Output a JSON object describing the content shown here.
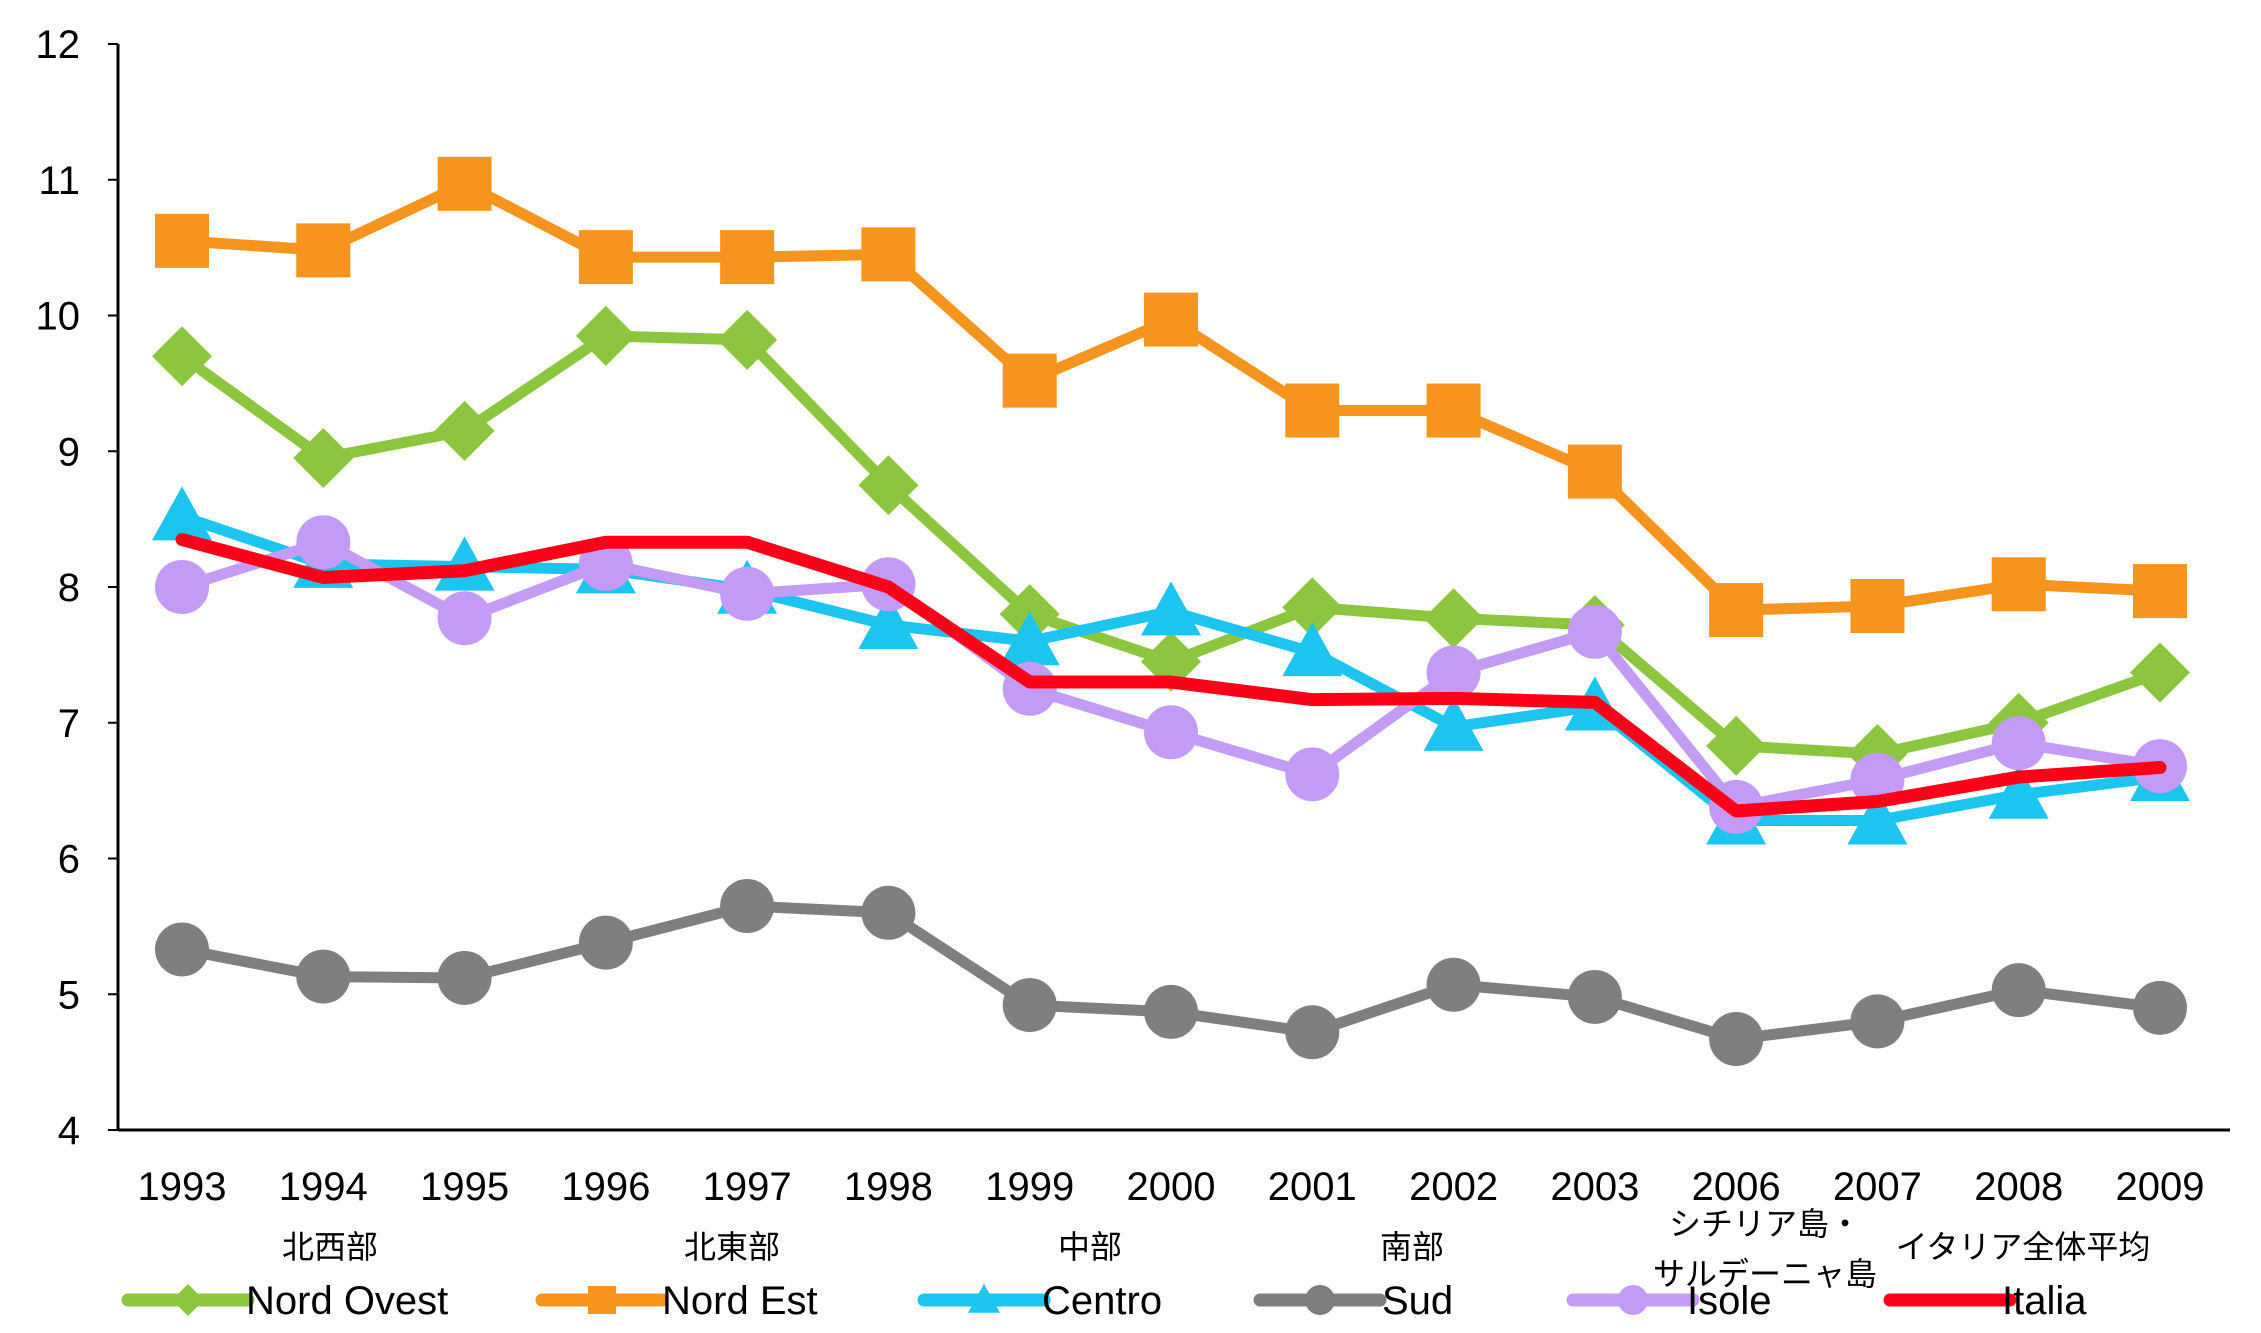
{
  "chart_data": {
    "type": "line",
    "title": "",
    "xlabel": "",
    "ylabel": "",
    "categories": [
      "1993",
      "1994",
      "1995",
      "1996",
      "1997",
      "1998",
      "1999",
      "2000",
      "2001",
      "2002",
      "2003",
      "2006",
      "2007",
      "2008",
      "2009"
    ],
    "ylim": [
      4,
      12
    ],
    "yticks": [
      "4",
      "5",
      "6",
      "7",
      "8",
      "9",
      "10",
      "11",
      "12"
    ],
    "grid": false,
    "legend_position": "bottom",
    "series": [
      {
        "key": "nordovest",
        "name": "Nord Ovest",
        "jp_label": "北西部",
        "color": "#8CC63F",
        "marker": "diamond",
        "values": [
          9.7,
          8.95,
          9.15,
          9.85,
          9.82,
          8.75,
          7.8,
          7.45,
          7.85,
          7.77,
          7.72,
          6.83,
          6.77,
          7.0,
          7.37
        ]
      },
      {
        "key": "nordest",
        "name": "Nord Est",
        "jp_label": "北東部",
        "color": "#F7941D",
        "marker": "square",
        "values": [
          10.55,
          10.48,
          10.97,
          10.43,
          10.43,
          10.45,
          9.52,
          9.97,
          9.3,
          9.3,
          8.85,
          7.83,
          7.86,
          8.02,
          7.97
        ]
      },
      {
        "key": "centro",
        "name": "Centro",
        "jp_label": "中部",
        "color": "#1CC5F0",
        "marker": "triangle",
        "values": [
          8.52,
          8.17,
          8.15,
          8.13,
          7.98,
          7.72,
          7.6,
          7.82,
          7.52,
          6.97,
          7.12,
          6.28,
          6.28,
          6.47,
          6.6
        ]
      },
      {
        "key": "sud",
        "name": "Sud",
        "jp_label": "南部",
        "color": "#7F7F7F",
        "marker": "circle",
        "values": [
          5.33,
          5.13,
          5.12,
          5.38,
          5.65,
          5.6,
          4.92,
          4.87,
          4.72,
          5.07,
          4.98,
          4.67,
          4.8,
          5.03,
          4.9
        ]
      },
      {
        "key": "isole",
        "name": "Isole",
        "jp_label_line1": "シチリア島・",
        "jp_label_line2": "サルデーニャ島",
        "color": "#C39BF7",
        "marker": "circle",
        "values": [
          8.0,
          8.33,
          7.77,
          8.17,
          7.95,
          8.02,
          7.25,
          6.93,
          6.62,
          7.37,
          7.67,
          6.38,
          6.58,
          6.85,
          6.68
        ]
      },
      {
        "key": "italia",
        "name": "Italia",
        "jp_label": "イタリア全体平均",
        "color": "#FF0019",
        "marker": "none",
        "values": [
          8.35,
          8.07,
          8.12,
          8.33,
          8.33,
          8.0,
          7.3,
          7.3,
          7.17,
          7.18,
          7.15,
          6.35,
          6.42,
          6.6,
          6.67
        ]
      }
    ]
  }
}
